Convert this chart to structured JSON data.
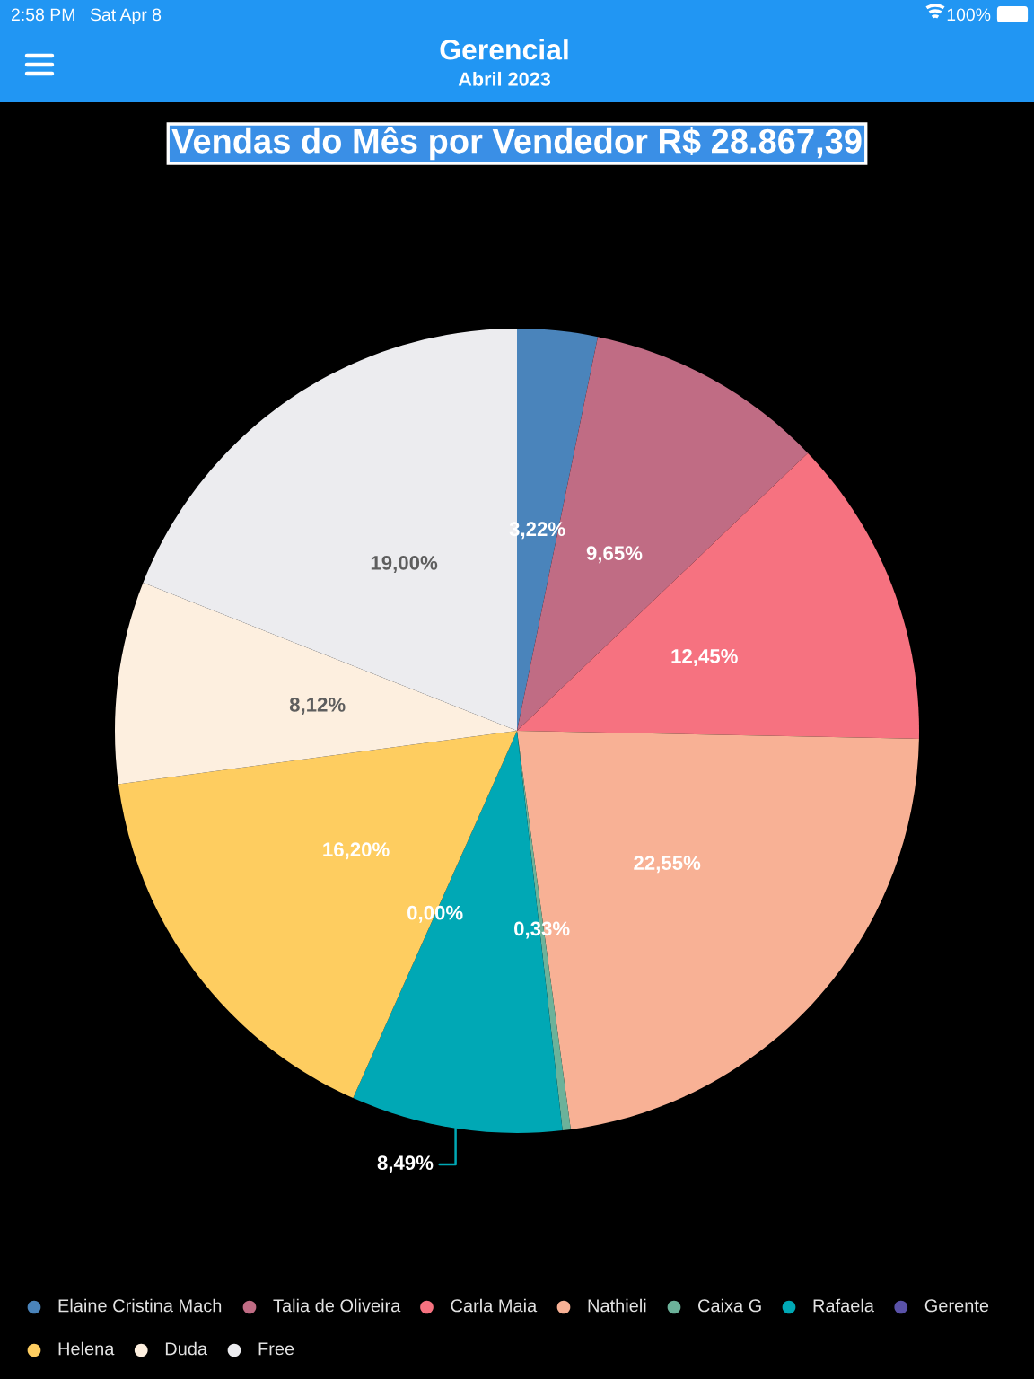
{
  "chart_data": {
    "type": "pie",
    "title": "Vendas do Mês por Vendedor R$ 28.867,39",
    "annotations": [
      "2:58 PM",
      "Sat Apr 8",
      "100%",
      "Gerencial",
      "Abril 2023"
    ],
    "categories": [
      "Elaine Cristina Mach",
      "Talia de Oliveira",
      "Carla Maia",
      "Nathieli",
      "Caixa G",
      "Rafaela",
      "Gerente",
      "Helena",
      "Duda",
      "Free"
    ],
    "values": [
      3.22,
      9.65,
      12.45,
      22.55,
      0.33,
      8.49,
      0.0,
      16.2,
      8.12,
      19.0
    ],
    "value_labels": [
      "3,22%",
      "9,65%",
      "12,45%",
      "22,55%",
      "0,33%",
      "8,49%",
      "0,00%",
      "16,20%",
      "8,12%",
      "19,00%"
    ],
    "colors": [
      "#4a84bb",
      "#c06c84",
      "#f67280",
      "#f8b195",
      "#6cb29a",
      "#00a8b5",
      "#5a52a8",
      "#fecd60",
      "#fdefdf",
      "#ececef"
    ],
    "legend": "bottom"
  }
}
